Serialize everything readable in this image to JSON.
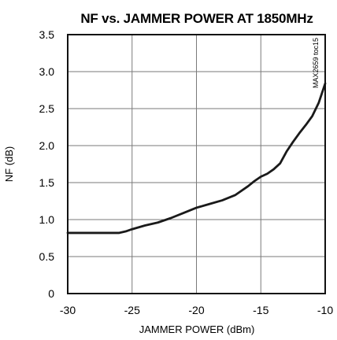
{
  "chart_data": {
    "type": "line",
    "title": "NF vs. JAMMER POWER AT 1850MHz",
    "xlabel": "JAMMER POWER (dBm)",
    "ylabel": "NF (dB)",
    "xlim": [
      -30,
      -10
    ],
    "ylim": [
      0,
      3.5
    ],
    "x_ticks": [
      -30,
      -25,
      -20,
      -15,
      -10
    ],
    "y_ticks": [
      0,
      0.5,
      1.0,
      1.5,
      2.0,
      2.5,
      3.0,
      3.5
    ],
    "x_tick_labels": [
      "-30",
      "-25",
      "-20",
      "-15",
      "-10"
    ],
    "y_tick_labels": [
      "0",
      "0.5",
      "1.0",
      "1.5",
      "2.0",
      "2.5",
      "3.0",
      "3.5"
    ],
    "grid": true,
    "annotation": "MAX2659 toc15",
    "series": [
      {
        "x": [
          -30,
          -29,
          -28,
          -27,
          -26,
          -25.5,
          -25,
          -24,
          -23,
          -22,
          -21,
          -20,
          -19,
          -18,
          -17,
          -16,
          -15.5,
          -15,
          -14.5,
          -14,
          -13.5,
          -13,
          -12.5,
          -12,
          -11.5,
          -11,
          -10.5,
          -10
        ],
        "y": [
          0.82,
          0.82,
          0.82,
          0.82,
          0.82,
          0.84,
          0.87,
          0.92,
          0.96,
          1.02,
          1.09,
          1.16,
          1.21,
          1.26,
          1.33,
          1.45,
          1.52,
          1.58,
          1.62,
          1.68,
          1.76,
          1.92,
          2.05,
          2.17,
          2.28,
          2.4,
          2.58,
          2.84
        ],
        "color": "#1a1a1a"
      }
    ]
  }
}
